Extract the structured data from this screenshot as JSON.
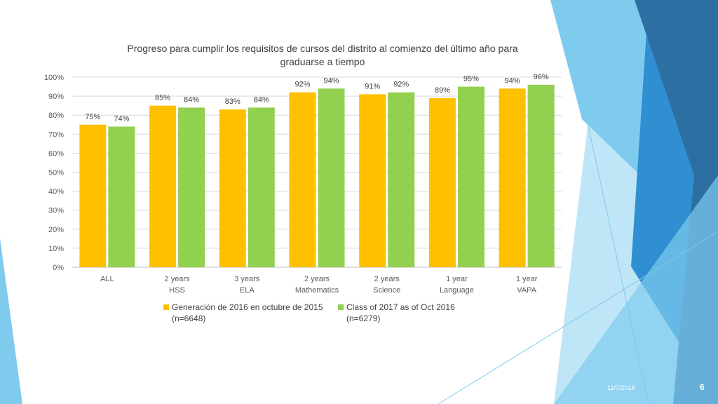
{
  "slide": {
    "date": "11/7/2018",
    "page_number": "6"
  },
  "colors": {
    "series_2016": "#ffc000",
    "series_2017": "#92d050",
    "decor_dark_blue": "#2e6fa3",
    "decor_mid_blue": "#2f8fd0",
    "decor_light_blue": "#7ecbee",
    "decor_pale_blue": "#bfe6f7"
  },
  "chart_data": {
    "type": "bar",
    "title_lines": [
      "Progreso para cumplir los requisitos de cursos del distrito al comienzo del último año para",
      "graduarse a tiempo"
    ],
    "categories": [
      [
        "ALL"
      ],
      [
        "2 years",
        "HSS"
      ],
      [
        "3 years",
        "ELA"
      ],
      [
        "2 years",
        "Mathematics"
      ],
      [
        "2 years",
        "Science"
      ],
      [
        "1 year",
        "Language"
      ],
      [
        "1 year",
        "VAPA"
      ]
    ],
    "series": [
      {
        "name_lines": [
          "Generación de 2016 en octubre de 2015",
          "(n=6648)"
        ],
        "values": [
          75,
          85,
          83,
          92,
          91,
          89,
          94
        ],
        "labels": [
          "75%",
          "85%",
          "83%",
          "92%",
          "91%",
          "89%",
          "94%"
        ]
      },
      {
        "name_lines": [
          "Class of 2017 as of Oct 2016",
          "(n=6279)"
        ],
        "values": [
          74,
          84,
          84,
          94,
          92,
          95,
          96
        ],
        "labels": [
          "74%",
          "84%",
          "84%",
          "94%",
          "92%",
          "95%",
          "96%"
        ]
      }
    ],
    "yticks": [
      "0%",
      "10%",
      "20%",
      "30%",
      "40%",
      "50%",
      "60%",
      "70%",
      "80%",
      "90%",
      "100%"
    ],
    "ylim": [
      0,
      100
    ],
    "grid": true,
    "legend": "bottom"
  }
}
